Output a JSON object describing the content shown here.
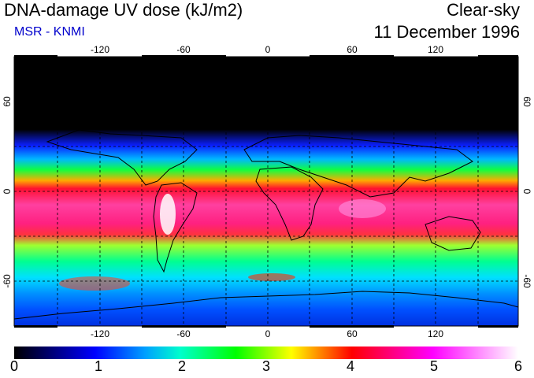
{
  "header": {
    "title": "DNA-damage UV dose (kJ/m2)",
    "subtitle": "MSR - KNMI",
    "condition": "Clear-sky",
    "date": "11 December 1996"
  },
  "map": {
    "lon_ticks": [
      "-120",
      "-60",
      "0",
      "60",
      "120"
    ],
    "lat_ticks": [
      "60",
      "0",
      "-60"
    ],
    "lon_values": [
      -120,
      -60,
      0,
      60,
      120
    ],
    "lat_values": [
      60,
      0,
      -60
    ],
    "lon_range": [
      -180,
      180
    ],
    "lat_range": [
      90,
      -90
    ],
    "grid": true,
    "colors": {
      "ocean_bg": "#000000",
      "coastline": "#000000"
    }
  },
  "colorbar": {
    "labels": [
      "0",
      "1",
      "2",
      "3",
      "4",
      "5",
      "6"
    ],
    "min": 0,
    "max": 6,
    "stops": [
      "#000000",
      "#0000ff",
      "#00ccff",
      "#00ff00",
      "#ffff00",
      "#ff0000",
      "#ff00ff",
      "#ffffff"
    ]
  }
}
